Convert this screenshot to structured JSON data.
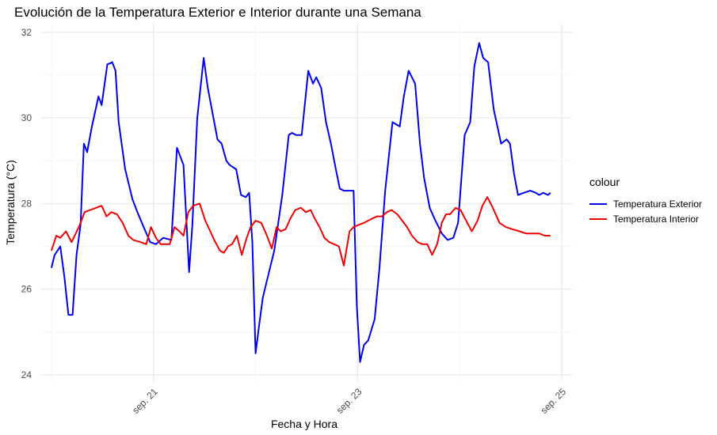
{
  "chart_data": {
    "type": "line",
    "title": "Evolución de la Temperatura Exterior e Interior durante una Semana",
    "xlabel": "Fecha y Hora",
    "ylabel": "Temperatura (°C)",
    "x_unit": "days since start",
    "xlim": [
      -0.1,
      5.1
    ],
    "ylim": [
      23.85,
      32.2
    ],
    "yticks": [
      24,
      26,
      28,
      30,
      32
    ],
    "xticks": [
      {
        "x": 1,
        "label": "sep. 21"
      },
      {
        "x": 3,
        "label": "sep. 23"
      },
      {
        "x": 5,
        "label": "sep. 25"
      }
    ],
    "grid": true,
    "legend": {
      "title": "colour",
      "position": "right"
    },
    "series": [
      {
        "name": "Temperatura Exterior",
        "color": "#0000ee",
        "x": [
          0,
          0.032,
          0.087,
          0.127,
          0.167,
          0.207,
          0.246,
          0.286,
          0.318,
          0.35,
          0.397,
          0.461,
          0.492,
          0.548,
          0.596,
          0.628,
          0.659,
          0.723,
          0.794,
          0.842,
          0.913,
          0.968,
          1.024,
          1.095,
          1.175,
          1.23,
          1.294,
          1.349,
          1.381,
          1.429,
          1.492,
          1.532,
          1.564,
          1.627,
          1.667,
          1.714,
          1.746,
          1.81,
          1.857,
          1.905,
          1.937,
          1.968,
          2.0,
          2.032,
          2.071,
          2.111,
          2.183,
          2.262,
          2.325,
          2.357,
          2.397,
          2.452,
          2.516,
          2.563,
          2.595,
          2.643,
          2.69,
          2.738,
          2.786,
          2.825,
          2.865,
          2.905,
          2.96,
          2.992,
          3.024,
          3.063,
          3.103,
          3.167,
          3.214,
          3.27,
          3.341,
          3.413,
          3.452,
          3.5,
          3.563,
          3.611,
          3.651,
          3.706,
          3.762,
          3.825,
          3.881,
          3.937,
          3.984,
          4.048,
          4.103,
          4.143,
          4.19,
          4.23,
          4.278,
          4.333,
          4.405,
          4.46,
          4.492,
          4.532,
          4.571,
          4.627,
          4.69,
          4.746,
          4.778,
          4.818,
          4.865,
          4.889
        ],
        "y": [
          26.5,
          26.8,
          27.0,
          26.3,
          25.4,
          25.4,
          26.8,
          27.5,
          29.4,
          29.2,
          29.8,
          30.5,
          30.3,
          31.25,
          31.3,
          31.1,
          29.9,
          28.8,
          28.1,
          27.8,
          27.4,
          27.1,
          27.05,
          27.2,
          27.15,
          29.3,
          28.9,
          26.4,
          27.5,
          30.0,
          31.4,
          30.7,
          30.3,
          29.5,
          29.4,
          29.0,
          28.9,
          28.8,
          28.2,
          28.15,
          28.25,
          27.1,
          24.5,
          25.1,
          25.8,
          26.2,
          26.9,
          28.2,
          29.6,
          29.65,
          29.6,
          29.6,
          31.1,
          30.8,
          30.95,
          30.7,
          29.9,
          29.4,
          28.8,
          28.35,
          28.3,
          28.3,
          28.3,
          25.6,
          24.3,
          24.7,
          24.8,
          25.3,
          26.5,
          28.3,
          29.9,
          29.8,
          30.5,
          31.1,
          30.8,
          29.4,
          28.6,
          27.9,
          27.6,
          27.3,
          27.15,
          27.2,
          27.55,
          29.6,
          29.9,
          31.2,
          31.75,
          31.4,
          31.3,
          30.2,
          29.4,
          29.5,
          29.4,
          28.7,
          28.2,
          28.25,
          28.3,
          28.25,
          28.2,
          28.25,
          28.2,
          28.25
        ]
      },
      {
        "name": "Temperatura Interior",
        "color": "#ee0000",
        "x": [
          0,
          0.048,
          0.087,
          0.143,
          0.198,
          0.238,
          0.278,
          0.325,
          0.381,
          0.437,
          0.492,
          0.54,
          0.587,
          0.643,
          0.698,
          0.754,
          0.802,
          0.873,
          0.929,
          0.976,
          1.024,
          1.071,
          1.111,
          1.159,
          1.206,
          1.254,
          1.294,
          1.341,
          1.389,
          1.452,
          1.508,
          1.556,
          1.595,
          1.651,
          1.69,
          1.73,
          1.77,
          1.817,
          1.865,
          1.913,
          1.952,
          2.0,
          2.056,
          2.103,
          2.159,
          2.206,
          2.246,
          2.294,
          2.341,
          2.389,
          2.444,
          2.492,
          2.54,
          2.579,
          2.627,
          2.675,
          2.722,
          2.77,
          2.817,
          2.865,
          2.921,
          2.96,
          3.008,
          3.063,
          3.103,
          3.143,
          3.19,
          3.238,
          3.286,
          3.333,
          3.389,
          3.437,
          3.484,
          3.532,
          3.587,
          3.635,
          3.683,
          3.73,
          3.778,
          3.825,
          3.865,
          3.905,
          3.96,
          4.008,
          4.063,
          4.119,
          4.175,
          4.222,
          4.27,
          4.325,
          4.389,
          4.452,
          4.516,
          4.587,
          4.651,
          4.714,
          4.778,
          4.833,
          4.889
        ],
        "y": [
          26.9,
          27.25,
          27.2,
          27.35,
          27.1,
          27.3,
          27.5,
          27.8,
          27.85,
          27.9,
          27.95,
          27.7,
          27.8,
          27.75,
          27.55,
          27.25,
          27.15,
          27.1,
          27.05,
          27.45,
          27.2,
          27.05,
          27.05,
          27.05,
          27.45,
          27.35,
          27.25,
          27.8,
          27.95,
          28.0,
          27.6,
          27.35,
          27.15,
          26.9,
          26.85,
          27.0,
          27.05,
          27.25,
          26.8,
          27.2,
          27.45,
          27.6,
          27.55,
          27.3,
          26.95,
          27.45,
          27.35,
          27.4,
          27.65,
          27.85,
          27.9,
          27.8,
          27.85,
          27.65,
          27.45,
          27.2,
          27.1,
          27.05,
          27.0,
          26.55,
          27.35,
          27.45,
          27.5,
          27.55,
          27.6,
          27.65,
          27.7,
          27.7,
          27.8,
          27.85,
          27.75,
          27.6,
          27.45,
          27.25,
          27.1,
          27.05,
          27.05,
          26.8,
          27.05,
          27.55,
          27.75,
          27.75,
          27.9,
          27.85,
          27.6,
          27.35,
          27.6,
          27.95,
          28.15,
          27.9,
          27.55,
          27.45,
          27.4,
          27.35,
          27.3,
          27.3,
          27.3,
          27.25,
          27.25
        ]
      }
    ]
  }
}
